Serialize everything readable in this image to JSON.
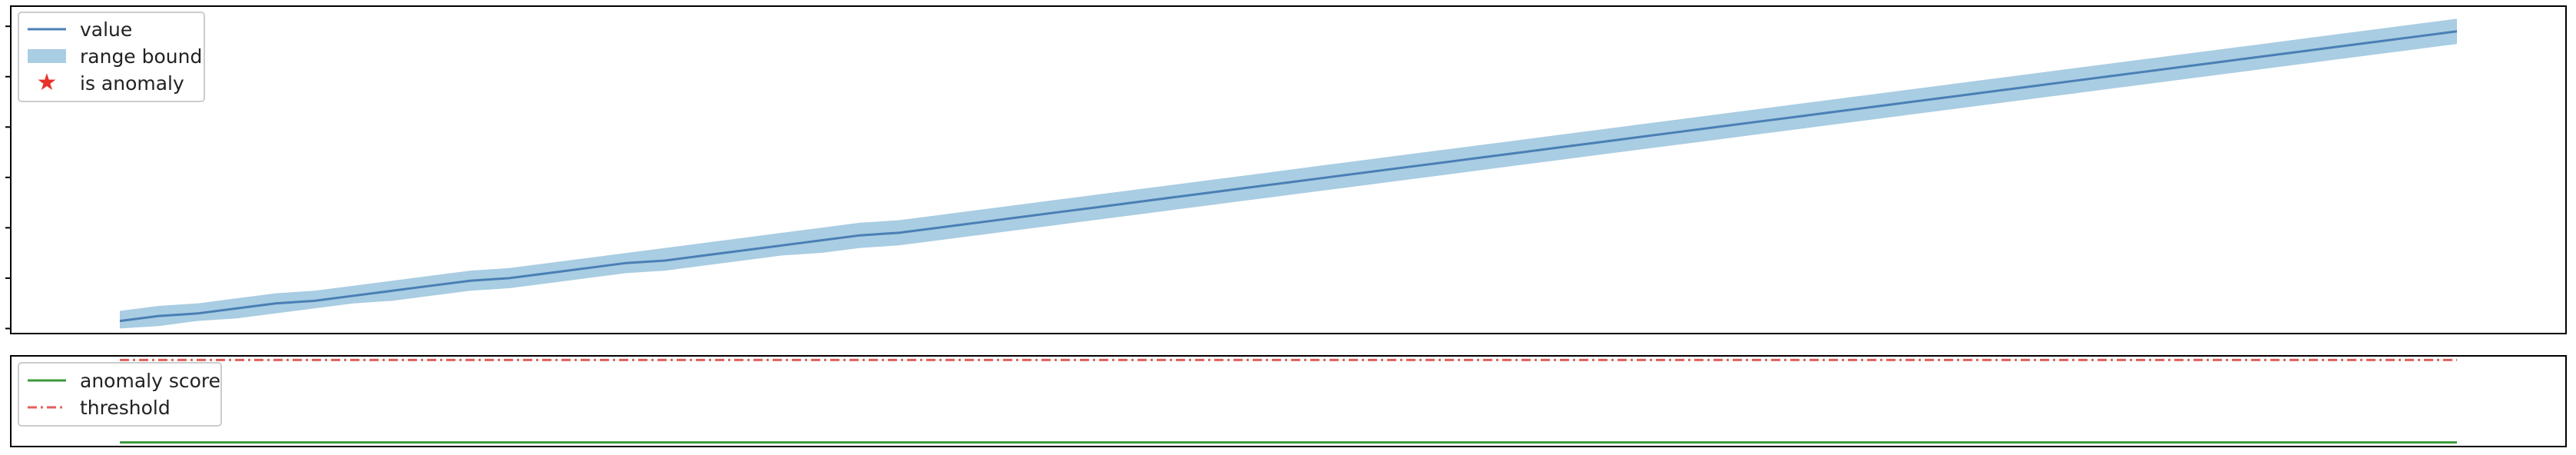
{
  "colors": {
    "value_line": "#4a7fb5",
    "band": "#a9cde2",
    "anomaly": "#e8312a",
    "score": "#3a9a3a",
    "threshold": "#e0605a"
  },
  "chart_data": [
    {
      "type": "line",
      "x": [
        0,
        5,
        10,
        15,
        20,
        25,
        30,
        35,
        40,
        45,
        50,
        55,
        60,
        65,
        70,
        75,
        80,
        85,
        90,
        95,
        100,
        105,
        110,
        115,
        120,
        125,
        130,
        135,
        140,
        145,
        150,
        155,
        160,
        165,
        170,
        175,
        180,
        185,
        190,
        195,
        200,
        205,
        210,
        215,
        220,
        225,
        230,
        235,
        240,
        245,
        250,
        255,
        260,
        265,
        270,
        275,
        280,
        285,
        290,
        295,
        300
      ],
      "series": [
        {
          "name": "value",
          "values": [
            0.3,
            0.5,
            0.6,
            0.8,
            1.0,
            1.1,
            1.3,
            1.5,
            1.7,
            1.9,
            2.0,
            2.2,
            2.4,
            2.6,
            2.7,
            2.9,
            3.1,
            3.3,
            3.5,
            3.7,
            3.8,
            4.0,
            4.2,
            4.4,
            4.6,
            4.8,
            5.0,
            5.2,
            5.4,
            5.6,
            5.8,
            6.0,
            6.2,
            6.4,
            6.6,
            6.8,
            7.0,
            7.2,
            7.4,
            7.6,
            7.8,
            8.0,
            8.2,
            8.4,
            8.6,
            8.8,
            9.0,
            9.2,
            9.4,
            9.6,
            9.8,
            10.0,
            10.2,
            10.4,
            10.6,
            10.8,
            11.0,
            11.2,
            11.4,
            11.6,
            11.8
          ]
        },
        {
          "name": "range bound",
          "lower": [
            0.0,
            0.1,
            0.3,
            0.4,
            0.6,
            0.8,
            1.0,
            1.1,
            1.3,
            1.5,
            1.6,
            1.8,
            2.0,
            2.2,
            2.3,
            2.5,
            2.7,
            2.9,
            3.0,
            3.2,
            3.3,
            3.5,
            3.7,
            3.9,
            4.1,
            4.3,
            4.5,
            4.7,
            4.9,
            5.1,
            5.3,
            5.5,
            5.7,
            5.9,
            6.1,
            6.3,
            6.5,
            6.7,
            6.9,
            7.1,
            7.3,
            7.5,
            7.7,
            7.9,
            8.1,
            8.3,
            8.5,
            8.7,
            8.9,
            9.1,
            9.3,
            9.5,
            9.7,
            9.9,
            10.1,
            10.3,
            10.5,
            10.7,
            10.9,
            11.1,
            11.3
          ],
          "upper": [
            0.7,
            0.9,
            1.0,
            1.2,
            1.4,
            1.5,
            1.7,
            1.9,
            2.1,
            2.3,
            2.4,
            2.6,
            2.8,
            3.0,
            3.2,
            3.4,
            3.6,
            3.8,
            4.0,
            4.2,
            4.3,
            4.5,
            4.7,
            4.9,
            5.1,
            5.3,
            5.5,
            5.7,
            5.9,
            6.1,
            6.3,
            6.5,
            6.7,
            6.9,
            7.1,
            7.3,
            7.5,
            7.7,
            7.9,
            8.1,
            8.3,
            8.5,
            8.7,
            8.9,
            9.1,
            9.3,
            9.5,
            9.7,
            9.9,
            10.1,
            10.3,
            10.5,
            10.7,
            10.9,
            11.1,
            11.3,
            11.5,
            11.7,
            11.9,
            12.1,
            12.3
          ]
        },
        {
          "name": "is anomaly",
          "x": [],
          "values": []
        }
      ],
      "xlim": [
        -14,
        314
      ],
      "ylim": [
        -0.2,
        12.8
      ],
      "yticks": [
        0,
        2,
        4,
        6,
        8,
        10,
        12
      ],
      "tick_labels_visible": false,
      "legend_entries": [
        "value",
        "range bound",
        "is anomaly"
      ],
      "legend_position": "top-left"
    },
    {
      "type": "line",
      "x": [
        0,
        300
      ],
      "series": [
        {
          "name": "anomaly score",
          "values": [
            0,
            0
          ]
        },
        {
          "name": "threshold",
          "values": [
            1,
            1
          ]
        }
      ],
      "xlim": [
        -14,
        314
      ],
      "ylim": [
        -0.05,
        1.05
      ],
      "tick_labels_visible": false,
      "legend_entries": [
        "anomaly score",
        "threshold"
      ],
      "legend_position": "top-left"
    }
  ]
}
